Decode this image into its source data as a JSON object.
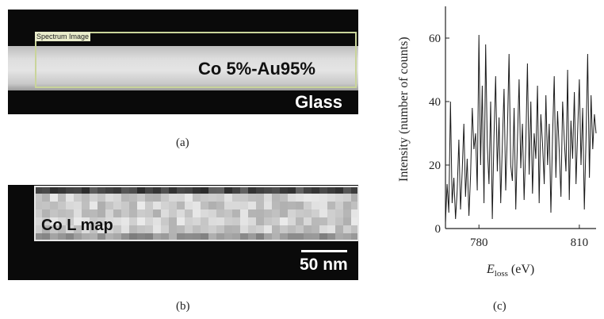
{
  "panel_a": {
    "roi_label": "Spectrum Image",
    "sample_label": "Co 5%-Au95%",
    "substrate_label": "Glass",
    "caption": "(a)"
  },
  "panel_b": {
    "map_label": "Co L map",
    "scale_label": "50 nm",
    "caption": "(b)"
  },
  "panel_c": {
    "caption": "(c)"
  },
  "chart_data": {
    "type": "line",
    "ylabel": "Intensity (number of counts)",
    "xlabel_main": "E",
    "xlabel_sub": "loss",
    "xlabel_unit": " (eV)",
    "xlim": [
      770,
      815
    ],
    "ylim": [
      0,
      70
    ],
    "x_ticks": [
      780,
      810
    ],
    "y_ticks": [
      0,
      20,
      40,
      60
    ],
    "x_tick_labels": [
      "780",
      "810"
    ],
    "y_tick_labels": [
      "0",
      "20",
      "40",
      "60"
    ],
    "grid": false,
    "series": [
      {
        "x": [
          770.0,
          770.5,
          771.0,
          771.5,
          772.0,
          772.5,
          773.0,
          773.5,
          774.0,
          774.5,
          775.0,
          775.5,
          776.0,
          776.5,
          777.0,
          777.5,
          778.0,
          778.5,
          779.0,
          779.5,
          780.0,
          780.5,
          781.0,
          781.5,
          782.0,
          782.5,
          783.0,
          783.5,
          784.0,
          784.5,
          785.0,
          785.5,
          786.0,
          786.5,
          787.0,
          787.5,
          788.0,
          788.5,
          789.0,
          789.5,
          790.0,
          790.5,
          791.0,
          791.5,
          792.0,
          792.5,
          793.0,
          793.5,
          794.0,
          794.5,
          795.0,
          795.5,
          796.0,
          796.5,
          797.0,
          797.5,
          798.0,
          798.5,
          799.0,
          799.5,
          800.0,
          800.5,
          801.0,
          801.5,
          802.0,
          802.5,
          803.0,
          803.5,
          804.0,
          804.5,
          805.0,
          805.5,
          806.0,
          806.5,
          807.0,
          807.5,
          808.0,
          808.5,
          809.0,
          809.5,
          810.0,
          810.5,
          811.0,
          811.5,
          812.0,
          812.5,
          813.0,
          813.5,
          814.0,
          814.5,
          815.0
        ],
        "y": [
          2,
          14,
          5,
          40,
          8,
          16,
          3,
          12,
          28,
          6,
          18,
          33,
          10,
          22,
          4,
          17,
          38,
          25,
          30,
          12,
          61,
          20,
          45,
          8,
          58,
          26,
          14,
          40,
          3,
          29,
          48,
          18,
          35,
          8,
          27,
          44,
          12,
          30,
          55,
          20,
          15,
          38,
          6,
          28,
          47,
          19,
          33,
          9,
          26,
          52,
          17,
          40,
          11,
          30,
          22,
          45,
          8,
          36,
          27,
          14,
          42,
          20,
          33,
          5,
          29,
          48,
          16,
          37,
          24,
          10,
          40,
          28,
          18,
          50,
          9,
          34,
          22,
          43,
          14,
          31,
          47,
          20,
          38,
          6,
          28,
          55,
          16,
          42,
          25,
          36,
          30
        ]
      }
    ]
  }
}
